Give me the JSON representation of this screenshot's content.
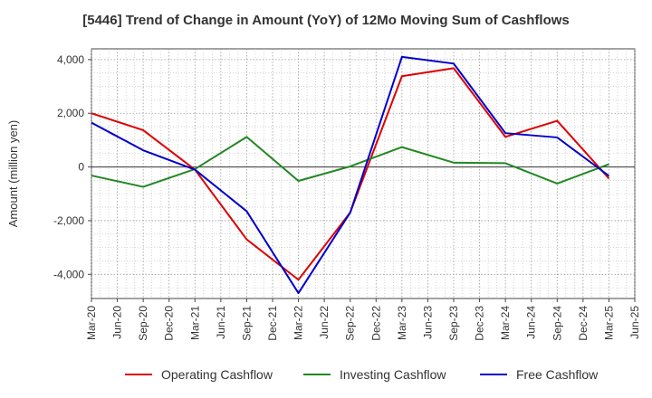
{
  "chart_data": {
    "type": "line",
    "title": "[5446]  Trend of Change in Amount (YoY) of 12Mo Moving Sum of Cashflows",
    "xlabel": "",
    "ylabel": "Amount (million yen)",
    "ylim": [
      -4900,
      4400
    ],
    "yticks": [
      4000,
      2000,
      0,
      -2000,
      -4000
    ],
    "ytick_labels": [
      "4,000",
      "2,000",
      "0",
      "-2,000",
      "-4,000"
    ],
    "categories": [
      "Mar-20",
      "Jun-20",
      "Sep-20",
      "Dec-20",
      "Mar-21",
      "Jun-21",
      "Sep-21",
      "Dec-21",
      "Mar-22",
      "Jun-22",
      "Sep-22",
      "Dec-22",
      "Mar-23",
      "Jun-23",
      "Sep-23",
      "Dec-23",
      "Mar-24",
      "Jun-24",
      "Sep-24",
      "Dec-24",
      "Mar-25",
      "Jun-25"
    ],
    "series": [
      {
        "name": "Operating Cashflow",
        "color": "#dd0000",
        "values": [
          2000,
          null,
          1370,
          null,
          -100,
          null,
          -2700,
          null,
          -4200,
          null,
          -1700,
          null,
          3380,
          null,
          3680,
          null,
          1120,
          null,
          1720,
          null,
          -430,
          null
        ]
      },
      {
        "name": "Investing Cashflow",
        "color": "#228822",
        "values": [
          -320,
          null,
          -740,
          null,
          -80,
          null,
          1120,
          null,
          -520,
          null,
          20,
          null,
          740,
          null,
          160,
          null,
          140,
          null,
          -620,
          null,
          100,
          null
        ]
      },
      {
        "name": "Free Cashflow",
        "color": "#0000cc",
        "values": [
          1650,
          null,
          620,
          null,
          -100,
          null,
          -1650,
          null,
          -4700,
          null,
          -1700,
          null,
          4100,
          null,
          3850,
          null,
          1260,
          null,
          1100,
          null,
          -330,
          null
        ]
      }
    ],
    "grid": true,
    "legend_position": "bottom"
  }
}
